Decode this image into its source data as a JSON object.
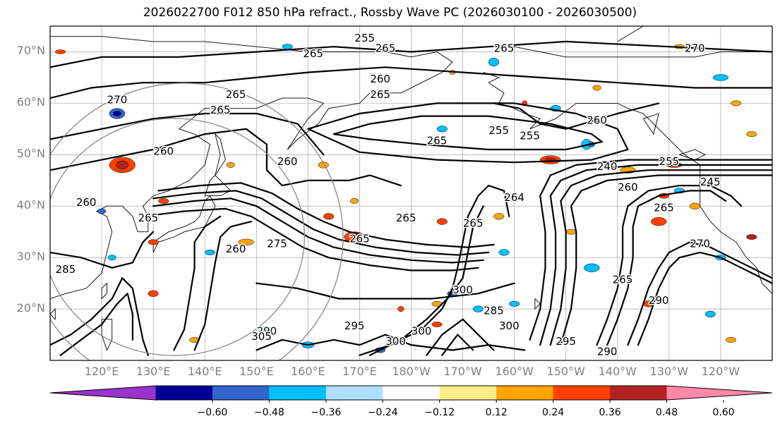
{
  "title": "2026022700 F012 850 hPa refract., Rossby Wave PC (2026030100 - 2026030500)",
  "map": {
    "projection": "PlateCarree",
    "extent": {
      "lon_min": 110,
      "lon_max": 250,
      "lat_min": 10,
      "lat_max": 75
    },
    "lat_ticks": [
      {
        "lat": 70,
        "label": "70°N"
      },
      {
        "lat": 60,
        "label": "60°N"
      },
      {
        "lat": 50,
        "label": "50°N"
      },
      {
        "lat": 40,
        "label": "40°N"
      },
      {
        "lat": 30,
        "label": "30°N"
      },
      {
        "lat": 20,
        "label": "20°N"
      }
    ],
    "lon_ticks": [
      {
        "lon": 120,
        "label": "120°E"
      },
      {
        "lon": 130,
        "label": "130°E"
      },
      {
        "lon": 140,
        "label": "140°E"
      },
      {
        "lon": 150,
        "label": "150°E"
      },
      {
        "lon": 160,
        "label": "160°E"
      },
      {
        "lon": 170,
        "label": "170°E"
      },
      {
        "lon": 180,
        "label": "180°W"
      },
      {
        "lon": 190,
        "label": "170°W"
      },
      {
        "lon": 200,
        "label": "160°W"
      },
      {
        "lon": 210,
        "label": "150°W"
      },
      {
        "lon": 220,
        "label": "140°W"
      },
      {
        "lon": 230,
        "label": "130°W"
      },
      {
        "lon": 240,
        "label": "120°W"
      }
    ],
    "gridlines": true,
    "contour_labels": [
      {
        "text": "265",
        "lon": 143,
        "lat": 58
      },
      {
        "text": "265",
        "lon": 146,
        "lat": 61
      },
      {
        "text": "270",
        "lon": 123,
        "lat": 60
      },
      {
        "text": "260",
        "lon": 132,
        "lat": 50
      },
      {
        "text": "260",
        "lon": 156,
        "lat": 48
      },
      {
        "text": "255",
        "lon": 171,
        "lat": 72
      },
      {
        "text": "265",
        "lon": 161,
        "lat": 69
      },
      {
        "text": "265",
        "lon": 175,
        "lat": 70
      },
      {
        "text": "260",
        "lon": 174,
        "lat": 64
      },
      {
        "text": "265",
        "lon": 174,
        "lat": 61
      },
      {
        "text": "265",
        "lon": 198,
        "lat": 70
      },
      {
        "text": "270",
        "lon": 235,
        "lat": 70
      },
      {
        "text": "255",
        "lon": 197,
        "lat": 54
      },
      {
        "text": "255",
        "lon": 203,
        "lat": 53
      },
      {
        "text": "265",
        "lon": 185,
        "lat": 52
      },
      {
        "text": "260",
        "lon": 216,
        "lat": 56
      },
      {
        "text": "265",
        "lon": 170,
        "lat": 33
      },
      {
        "text": "265",
        "lon": 179,
        "lat": 37
      },
      {
        "text": "265",
        "lon": 192,
        "lat": 36
      },
      {
        "text": "264",
        "lon": 200,
        "lat": 41
      },
      {
        "text": "260",
        "lon": 146,
        "lat": 31
      },
      {
        "text": "275",
        "lon": 154,
        "lat": 32
      },
      {
        "text": "240",
        "lon": 218,
        "lat": 47
      },
      {
        "text": "255",
        "lon": 230,
        "lat": 48
      },
      {
        "text": "245",
        "lon": 238,
        "lat": 44
      },
      {
        "text": "260",
        "lon": 222,
        "lat": 43
      },
      {
        "text": "265",
        "lon": 229,
        "lat": 39
      },
      {
        "text": "270",
        "lon": 236,
        "lat": 32
      },
      {
        "text": "265",
        "lon": 221,
        "lat": 25
      },
      {
        "text": "290",
        "lon": 228,
        "lat": 21
      },
      {
        "text": "290",
        "lon": 218,
        "lat": 11
      },
      {
        "text": "295",
        "lon": 210,
        "lat": 13
      },
      {
        "text": "285",
        "lon": 113,
        "lat": 27
      },
      {
        "text": "290",
        "lon": 152,
        "lat": 15
      },
      {
        "text": "300",
        "lon": 177,
        "lat": 13
      },
      {
        "text": "305",
        "lon": 151,
        "lat": 14
      },
      {
        "text": "295",
        "lon": 169,
        "lat": 16
      },
      {
        "text": "300",
        "lon": 182,
        "lat": 15
      },
      {
        "text": "300",
        "lon": 199,
        "lat": 16
      },
      {
        "text": "300",
        "lon": 190,
        "lat": 23
      },
      {
        "text": "285",
        "lon": 196,
        "lat": 19
      },
      {
        "text": "260",
        "lon": 117,
        "lat": 40
      },
      {
        "text": "265",
        "lon": 129,
        "lat": 37
      }
    ]
  },
  "colorbar": {
    "colors": [
      "#9933cc",
      "#000099",
      "#3366cc",
      "#00bfff",
      "#b0e0ff",
      "#ffffff",
      "#ffee88",
      "#ffa500",
      "#ff4000",
      "#b22222",
      "#ff88aa"
    ],
    "ticks": [
      "−0.60",
      "−0.48",
      "−0.36",
      "−0.24",
      "−0.12",
      "0.12",
      "0.24",
      "0.36",
      "0.48",
      "0.60"
    ]
  }
}
